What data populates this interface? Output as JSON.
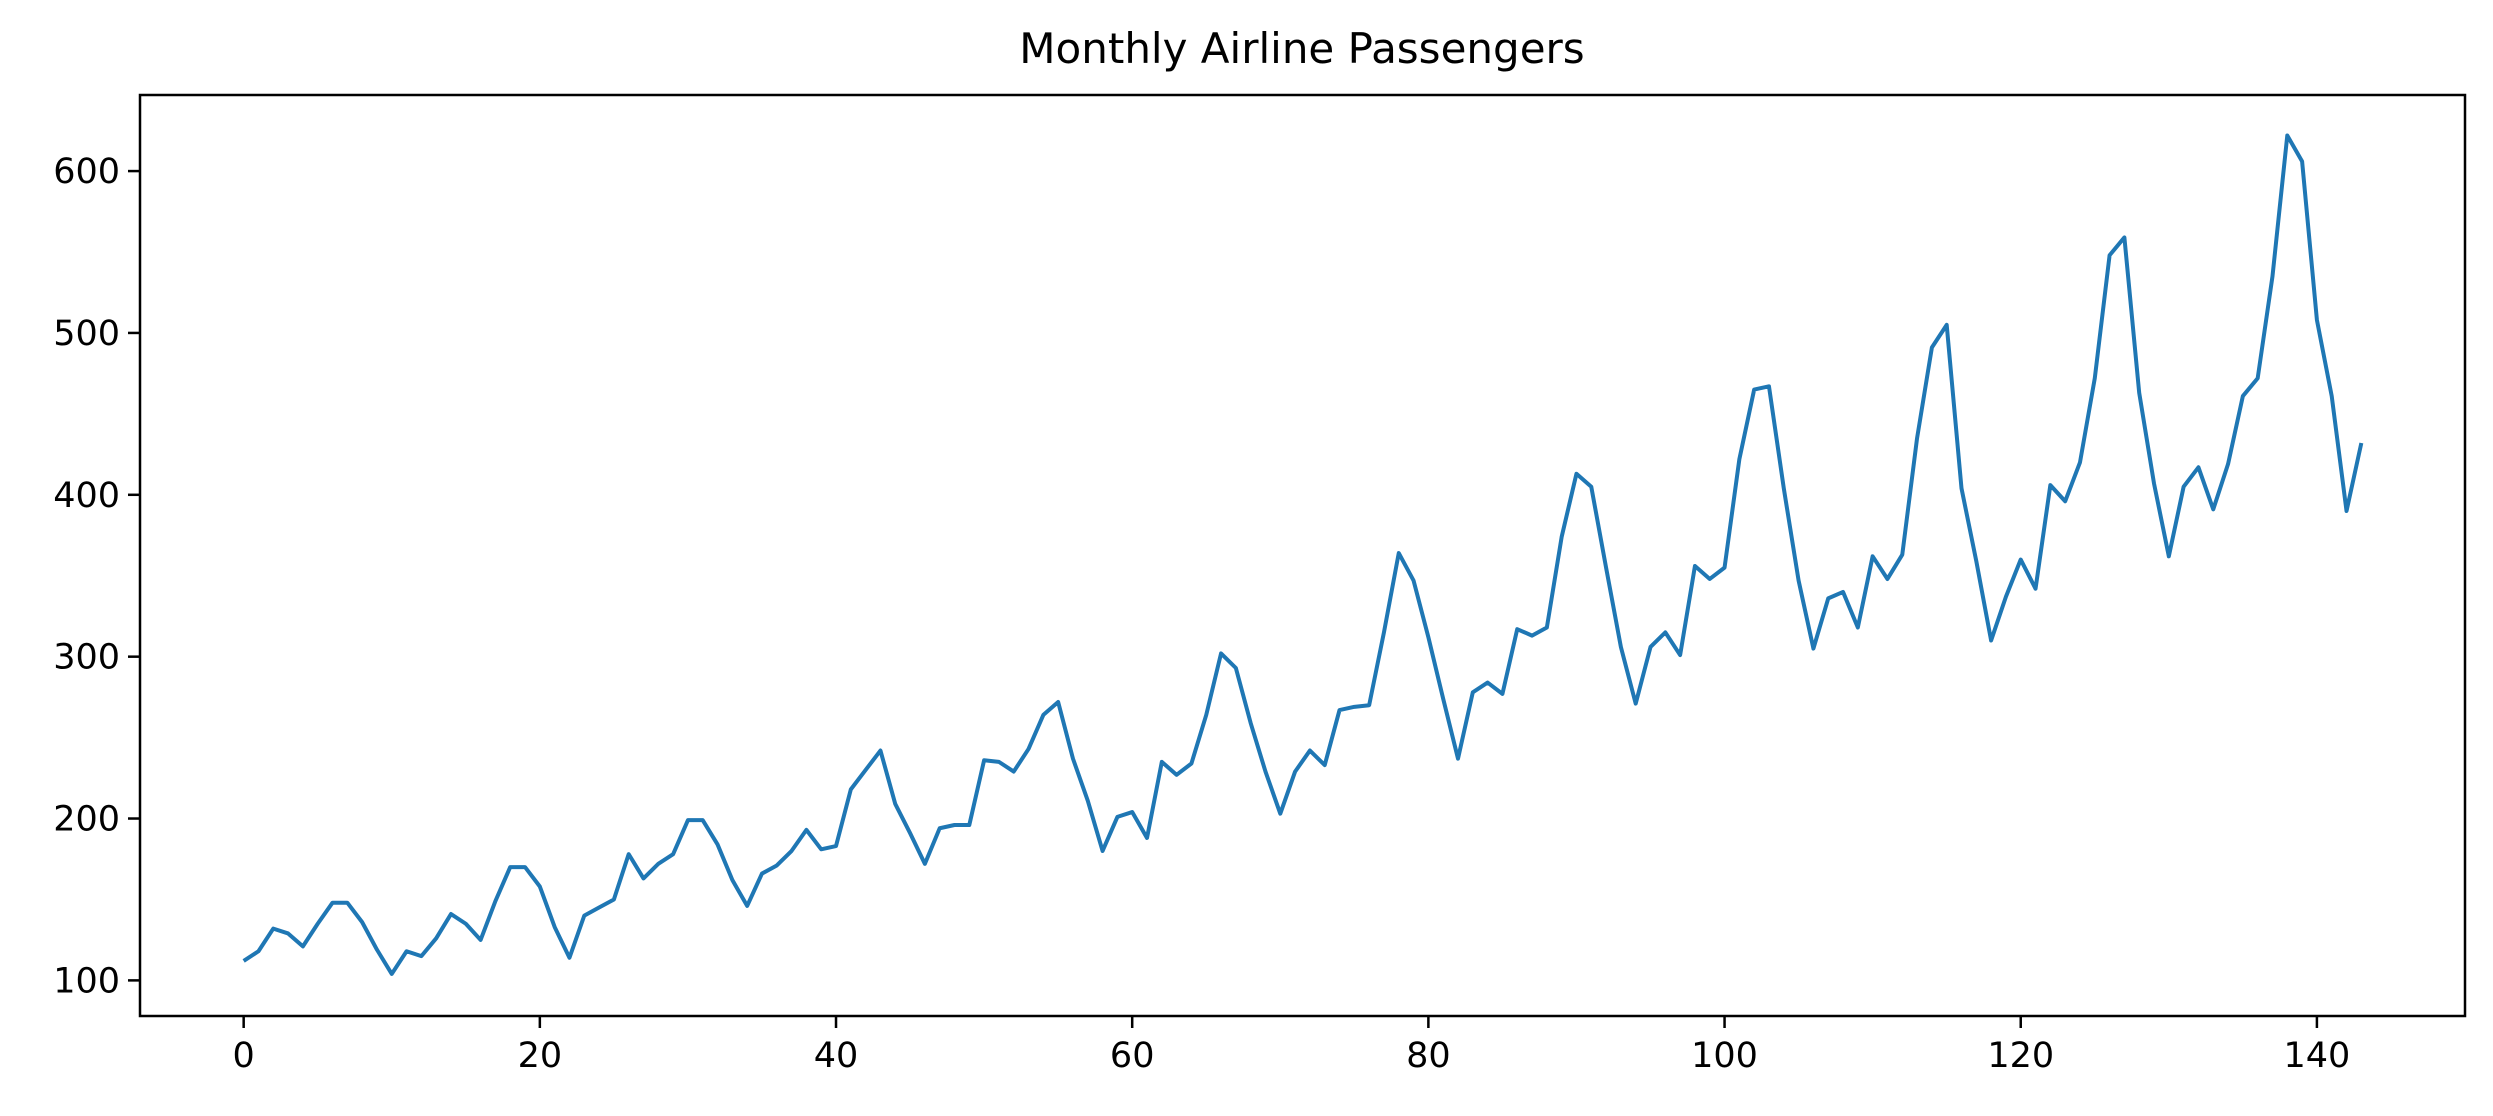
{
  "chart_data": {
    "type": "line",
    "title": "Monthly Airline Passengers",
    "xlabel": "",
    "ylabel": "",
    "xlim": [
      -7,
      150
    ],
    "ylim": [
      78,
      647
    ],
    "x_ticks": [
      0,
      20,
      40,
      60,
      80,
      100,
      120,
      140
    ],
    "y_ticks": [
      100,
      200,
      300,
      400,
      500,
      600
    ],
    "grid": false,
    "line_color": "#1f77b4",
    "series": [
      {
        "values": [
          112,
          118,
          132,
          129,
          121,
          135,
          148,
          148,
          136,
          119,
          104,
          118,
          115,
          126,
          141,
          135,
          125,
          149,
          170,
          170,
          158,
          133,
          114,
          140,
          145,
          150,
          178,
          163,
          172,
          178,
          199,
          199,
          184,
          162,
          146,
          166,
          171,
          180,
          193,
          181,
          183,
          218,
          230,
          242,
          209,
          191,
          172,
          194,
          196,
          196,
          236,
          235,
          229,
          243,
          264,
          272,
          237,
          211,
          180,
          201,
          204,
          188,
          235,
          227,
          234,
          264,
          302,
          293,
          259,
          229,
          203,
          229,
          242,
          233,
          267,
          269,
          270,
          315,
          364,
          347,
          312,
          274,
          237,
          278,
          284,
          277,
          317,
          313,
          318,
          374,
          413,
          405,
          355,
          306,
          271,
          306,
          315,
          301,
          356,
          348,
          355,
          422,
          465,
          467,
          404,
          347,
          305,
          336,
          340,
          318,
          362,
          348,
          363,
          435,
          491,
          505,
          404,
          359,
          310,
          337,
          360,
          342,
          406,
          396,
          420,
          472,
          548,
          559,
          463,
          407,
          362,
          405,
          417,
          391,
          419,
          461,
          472,
          535,
          622,
          606,
          508,
          461,
          390,
          432
        ]
      }
    ]
  }
}
